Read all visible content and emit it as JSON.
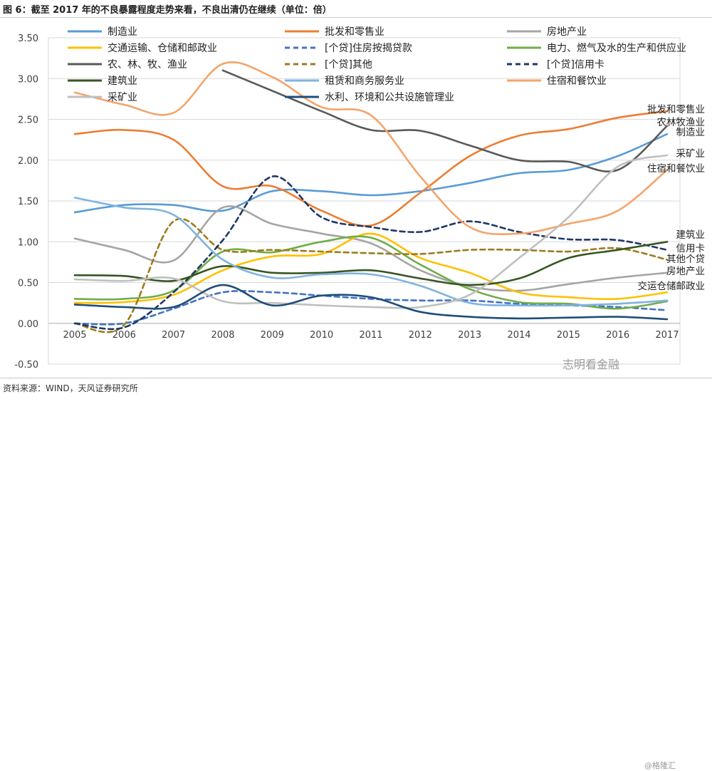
{
  "header": {
    "title": "图 6：截至 2017 年的不良暴露程度走势来看，不良出清仍在继续（单位：倍）"
  },
  "footer": {
    "source": "资料来源：WIND，天风证券研究所",
    "watermark": "志明看金融",
    "watermark2": "@格隆汇"
  },
  "chart_data": {
    "type": "line",
    "title": "图 6：截至 2017 年的不良暴露程度走势来看，不良出清仍在继续（单位：倍）",
    "xlabel": "",
    "ylabel": "",
    "x": [
      2005,
      2006,
      2007,
      2008,
      2009,
      2010,
      2011,
      2012,
      2013,
      2014,
      2015,
      2016,
      2017
    ],
    "ylim": [
      -0.5,
      3.5
    ],
    "yticks": [
      "-0.50",
      "0.00",
      "0.50",
      "1.00",
      "1.50",
      "2.00",
      "2.50",
      "3.00",
      "3.50"
    ],
    "ytick_values": [
      -0.5,
      0,
      0.5,
      1.0,
      1.5,
      2.0,
      2.5,
      3.0,
      3.5
    ],
    "grid": true,
    "legend_position": "top",
    "series": [
      {
        "name": "制造业",
        "color": "#5b9bd5",
        "dash": false,
        "values": [
          1.36,
          1.45,
          1.45,
          1.38,
          1.62,
          1.62,
          1.57,
          1.62,
          1.72,
          1.84,
          1.88,
          2.05,
          2.32
        ]
      },
      {
        "name": "批发和零售业",
        "color": "#ed7d31",
        "dash": false,
        "values": [
          2.32,
          2.37,
          2.25,
          1.68,
          1.68,
          1.38,
          1.2,
          1.6,
          2.05,
          2.3,
          2.38,
          2.52,
          2.6
        ]
      },
      {
        "name": "房地产业",
        "color": "#a5a5a5",
        "dash": false,
        "values": [
          1.04,
          0.9,
          0.77,
          1.42,
          1.22,
          1.1,
          0.98,
          0.65,
          0.45,
          0.4,
          0.48,
          0.56,
          0.62
        ]
      },
      {
        "name": "交通运输、仓储和邮政业",
        "color": "#ffc000",
        "dash": false,
        "values": [
          0.25,
          0.26,
          0.35,
          0.65,
          0.82,
          0.85,
          1.1,
          0.8,
          0.62,
          0.38,
          0.32,
          0.3,
          0.38
        ]
      },
      {
        "name": "[个贷]住房按揭贷款",
        "color": "#4472c4",
        "dash": true,
        "values": [
          0.0,
          0.0,
          0.18,
          0.38,
          0.38,
          0.34,
          0.3,
          0.28,
          0.28,
          0.24,
          0.22,
          0.2,
          0.16
        ]
      },
      {
        "name": "电力、燃气及水的生产和供应业",
        "color": "#70ad47",
        "dash": false,
        "values": [
          0.3,
          0.3,
          0.4,
          0.88,
          0.87,
          1.0,
          1.05,
          0.72,
          0.42,
          0.26,
          0.24,
          0.18,
          0.27
        ]
      },
      {
        "name": "农、林、牧、渔业",
        "color": "#595959",
        "dash": false,
        "values": [
          null,
          null,
          null,
          3.1,
          2.85,
          2.6,
          2.37,
          2.36,
          2.18,
          2.0,
          1.98,
          1.88,
          2.42
        ]
      },
      {
        "name": "[个贷]其他",
        "color": "#9c7c1c",
        "dash": true,
        "values": [
          0.0,
          -0.02,
          1.25,
          0.9,
          0.9,
          0.88,
          0.86,
          0.85,
          0.9,
          0.9,
          0.88,
          0.92,
          0.78
        ]
      },
      {
        "name": "[个贷]信用卡",
        "color": "#203864",
        "dash": true,
        "values": [
          0.0,
          -0.05,
          0.38,
          1.02,
          1.8,
          1.3,
          1.18,
          1.12,
          1.25,
          1.12,
          1.03,
          1.02,
          0.9
        ]
      },
      {
        "name": "建筑业",
        "color": "#375623",
        "dash": false,
        "values": [
          0.59,
          0.58,
          0.52,
          0.7,
          0.62,
          0.62,
          0.65,
          0.55,
          0.47,
          0.55,
          0.8,
          0.9,
          1.0
        ]
      },
      {
        "name": "租赁和商务服务业",
        "color": "#7fb3df",
        "dash": false,
        "values": [
          1.54,
          1.42,
          1.33,
          0.78,
          0.56,
          0.6,
          0.6,
          0.46,
          0.25,
          0.22,
          0.22,
          0.24,
          0.28
        ]
      },
      {
        "name": "住宿和餐饮业",
        "color": "#f4a46a",
        "dash": false,
        "values": [
          2.83,
          2.68,
          2.58,
          3.18,
          3.02,
          2.65,
          2.55,
          1.8,
          1.18,
          1.1,
          1.22,
          1.38,
          1.88
        ]
      },
      {
        "name": "采矿业",
        "color": "#bfbfbf",
        "dash": false,
        "values": [
          0.54,
          0.52,
          0.55,
          0.27,
          0.25,
          0.22,
          0.2,
          0.2,
          0.35,
          0.8,
          1.3,
          1.92,
          2.06
        ]
      },
      {
        "name": "水利、环境和公共设施管理业",
        "color": "#1f4e79",
        "dash": false,
        "values": [
          0.23,
          0.2,
          0.2,
          0.47,
          0.22,
          0.34,
          0.32,
          0.14,
          0.08,
          0.06,
          0.07,
          0.08,
          0.05
        ]
      }
    ],
    "end_labels": [
      {
        "text": "批发和零售业",
        "value": 2.6
      },
      {
        "text": "农林牧渔业",
        "value": 2.45
      },
      {
        "text": "制造业",
        "value": 2.3
      },
      {
        "text": "采矿业",
        "value": 2.06
      },
      {
        "text": "住宿和餐饮业",
        "value": 1.9
      },
      {
        "text": "建筑业",
        "value": 1.05
      },
      {
        "text": "信用卡",
        "value": 0.9
      },
      {
        "text": "其他个贷",
        "value": 0.78
      },
      {
        "text": "房地产业",
        "value": 0.62
      },
      {
        "text": "交运仓储邮政业",
        "value": 0.44
      }
    ]
  }
}
